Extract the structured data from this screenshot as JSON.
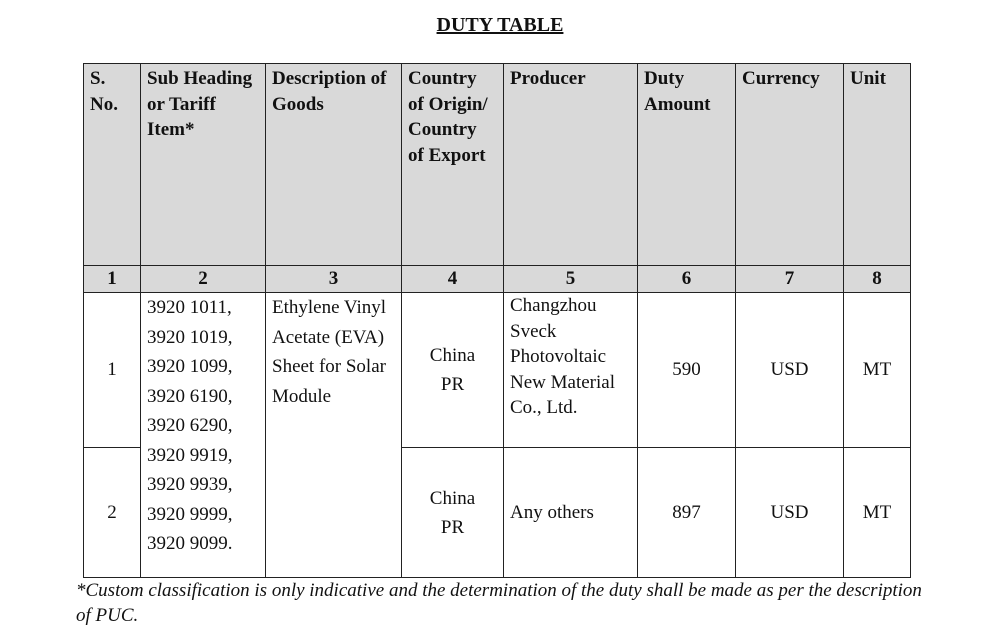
{
  "title": "DUTY TABLE",
  "table": {
    "headers": [
      "S. No.",
      "Sub Heading or Tariff Item*",
      "Description of Goods",
      "Country of Origin/ Country of Export",
      "Producer",
      "Duty Amount",
      "Currency",
      "Unit"
    ],
    "column_numbers": [
      1,
      2,
      3,
      4,
      5,
      6,
      7,
      8
    ],
    "tariff_items": [
      "3920 1011,",
      "3920 1019,",
      "3920 1099,",
      "3920 6190,",
      "3920 6290,",
      "3920 9919,",
      "3920 9939,",
      "3920 9999,",
      "3920 9099."
    ],
    "description": "Ethylene Vinyl Acetate (EVA) Sheet for Solar Module",
    "rows": [
      {
        "s_no": 1,
        "country": "China PR",
        "producer": "Changzhou Sveck Photovoltaic New Material Co., Ltd.",
        "duty_amount": 590,
        "currency": "USD",
        "unit": "MT"
      },
      {
        "s_no": 2,
        "country": "China PR",
        "producer": "Any others",
        "duty_amount": 897,
        "currency": "USD",
        "unit": "MT"
      }
    ]
  },
  "footnote": "*Custom classification is only indicative and the determination of the duty shall be made as per the description of PUC."
}
